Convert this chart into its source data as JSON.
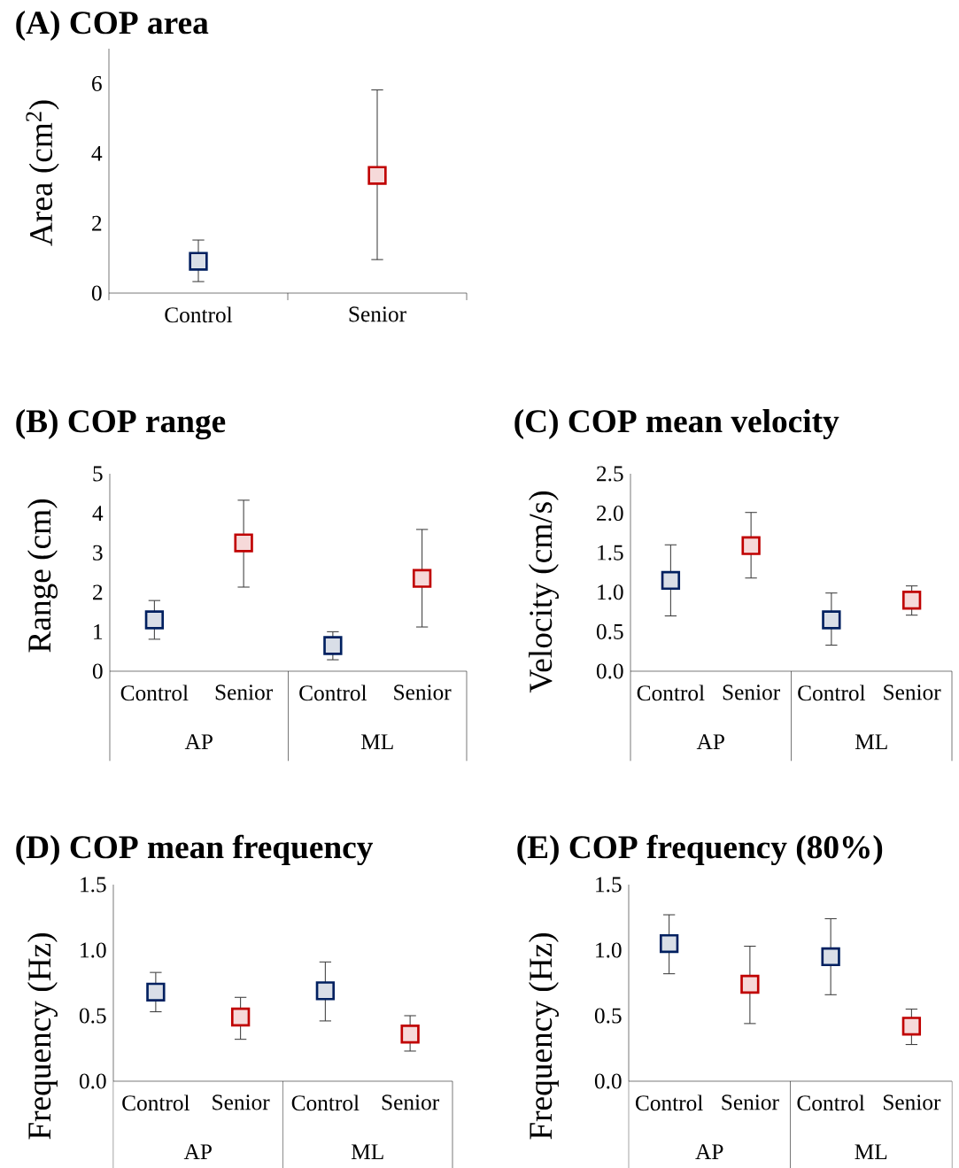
{
  "chart_data": [
    {
      "type": "scatter",
      "title": "(A) COP area",
      "ylabel": "Area (cm$^{2}$)",
      "categories": [
        "Control",
        "Senior"
      ],
      "values": [
        0.91,
        3.37
      ],
      "errors": [
        [
          0.33,
          1.52
        ],
        [
          0.96,
          5.82
        ]
      ],
      "colors": [
        "#002060",
        "#c00000"
      ],
      "marker": "square",
      "ylim": [
        0,
        7
      ],
      "yticks": [
        0,
        2,
        4,
        6
      ]
    },
    {
      "type": "scatter",
      "title": "(B) COP range",
      "ylabel": "Range (cm)",
      "categories": [
        "Control",
        "Senior",
        "Control",
        "Senior"
      ],
      "values": [
        1.3,
        3.25,
        0.65,
        2.35
      ],
      "errors": [
        [
          0.81,
          1.79
        ],
        [
          2.13,
          4.33
        ],
        [
          0.29,
          1.0
        ],
        [
          1.12,
          3.59
        ]
      ],
      "colors": [
        "#002060",
        "#c00000",
        "#002060",
        "#c00000"
      ],
      "marker": "square",
      "ylim": [
        0,
        5
      ],
      "yticks": [
        0,
        1,
        2,
        3,
        4,
        5
      ],
      "annotations": [
        "AP",
        "ML"
      ]
    },
    {
      "type": "scatter",
      "title": "(C) COP mean velocity",
      "ylabel": "Velocity (cm/s)",
      "categories": [
        "Control",
        "Senior",
        "Control",
        "Senior"
      ],
      "values": [
        1.15,
        1.59,
        0.65,
        0.9
      ],
      "errors": [
        [
          0.7,
          1.6
        ],
        [
          1.18,
          2.01
        ],
        [
          0.33,
          0.99
        ],
        [
          0.71,
          1.08
        ]
      ],
      "colors": [
        "#002060",
        "#c00000",
        "#002060",
        "#c00000"
      ],
      "marker": "square",
      "ylim": [
        0,
        2.5
      ],
      "yticks": [
        {
          "value": 0,
          "label": "0.0"
        },
        {
          "value": 0.5,
          "label": "0.5"
        },
        {
          "value": 1,
          "label": "1.0"
        },
        {
          "value": 1.5,
          "label": "1.5"
        },
        {
          "value": 2,
          "label": "2.0"
        },
        {
          "value": 2.5,
          "label": "2.5"
        }
      ],
      "annotations": [
        "AP",
        "ML"
      ]
    },
    {
      "type": "scatter",
      "title": "(D) COP mean frequency",
      "ylabel": "Frequency (Hz)",
      "categories": [
        "Control",
        "Senior",
        "Control",
        "Senior"
      ],
      "values": [
        0.68,
        0.49,
        0.69,
        0.36
      ],
      "errors": [
        [
          0.53,
          0.83
        ],
        [
          0.32,
          0.64
        ],
        [
          0.46,
          0.91
        ],
        [
          0.23,
          0.5
        ]
      ],
      "colors": [
        "#002060",
        "#c00000",
        "#002060",
        "#c00000"
      ],
      "marker": "square",
      "ylim": [
        0,
        1.5
      ],
      "yticks": [
        {
          "value": 0,
          "label": "0.0"
        },
        {
          "value": 0.5,
          "label": "0.5"
        },
        {
          "value": 1,
          "label": "1.0"
        },
        {
          "value": 1.5,
          "label": "1.5"
        }
      ],
      "annotations": [
        "AP",
        "ML"
      ]
    },
    {
      "type": "scatter",
      "title": "(E) COP frequency  (80%)",
      "ylabel": "Frequency (Hz)",
      "categories": [
        "Control",
        "Senior",
        "Control",
        "Senior"
      ],
      "values": [
        1.05,
        0.74,
        0.95,
        0.42
      ],
      "errors": [
        [
          0.82,
          1.27
        ],
        [
          0.44,
          1.03
        ],
        [
          0.66,
          1.24
        ],
        [
          0.28,
          0.55
        ]
      ],
      "colors": [
        "#002060",
        "#c00000",
        "#002060",
        "#c00000"
      ],
      "marker": "square",
      "ylim": [
        0,
        1.5
      ],
      "yticks": [
        {
          "value": 0,
          "label": "0.0"
        },
        {
          "value": 0.5,
          "label": "0.5"
        },
        {
          "value": 1,
          "label": "1.0"
        },
        {
          "value": 1.5,
          "label": "1.5"
        }
      ],
      "annotations": [
        "AP",
        "ML"
      ]
    }
  ]
}
